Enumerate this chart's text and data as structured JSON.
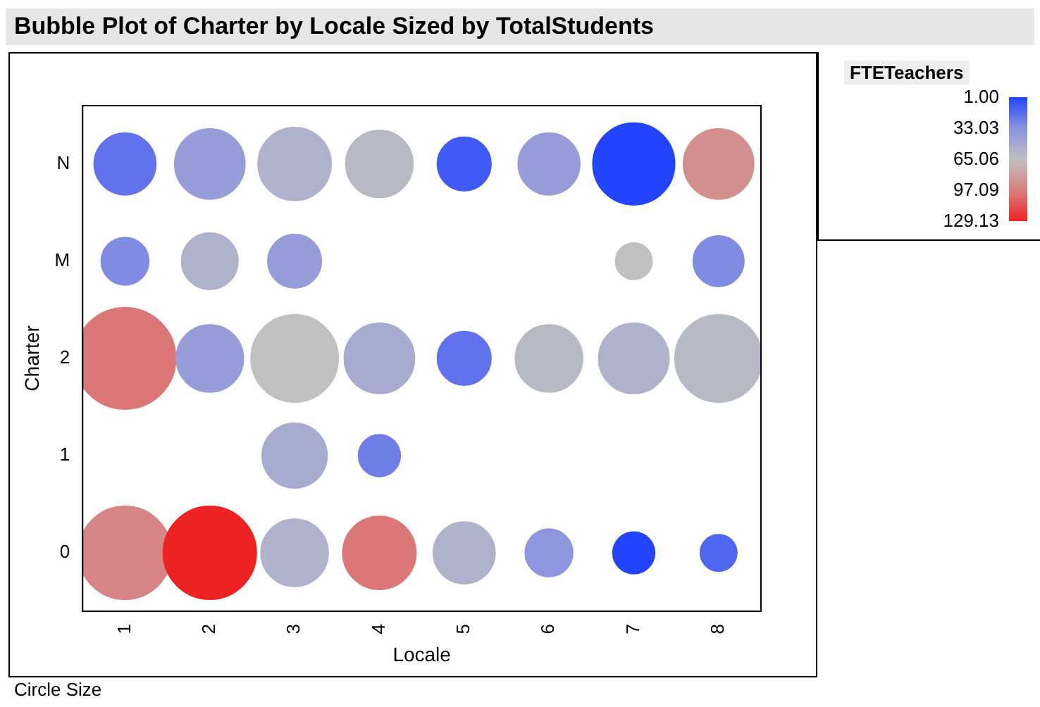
{
  "chart_data": {
    "type": "bubble",
    "title": "Bubble Plot of Charter by Locale Sized by TotalStudents",
    "xlabel": "Locale",
    "ylabel": "Charter",
    "clabel": "FTETeachers",
    "annotations": [
      "Circle Size"
    ],
    "xlim": [
      0.5,
      8.5
    ],
    "xticks": [
      1,
      2,
      3,
      4,
      5,
      6,
      7,
      8
    ],
    "ylim": [
      -0.6,
      4.6
    ],
    "yticks": [
      0,
      1,
      2,
      {
        "value": 3,
        "label": "M"
      },
      {
        "value": 4,
        "label": "N"
      }
    ],
    "clim": [
      1,
      129.13
    ],
    "cticks": [
      {
        "value": 1,
        "label": "1.00"
      },
      33.03,
      65.06,
      97.09,
      129.13
    ],
    "series": [
      {
        "x": [
          1,
          2,
          3,
          4,
          5,
          6,
          7,
          8,
          1,
          2,
          3,
          7,
          8,
          1,
          2,
          3,
          4,
          5,
          6,
          7,
          8,
          3,
          4,
          1,
          2,
          3,
          4,
          5,
          6,
          7,
          8
        ],
        "values": [
          4,
          4,
          4,
          4,
          4,
          4,
          4,
          4,
          3,
          3,
          3,
          3,
          3,
          2,
          2,
          2,
          2,
          2,
          2,
          2,
          2,
          1,
          1,
          0,
          0,
          0,
          0,
          0,
          0,
          0,
          0
        ],
        "sizes": [
          0.37,
          0.48,
          0.52,
          0.44,
          0.28,
          0.37,
          0.65,
          0.48,
          0.22,
          0.31,
          0.28,
          0.13,
          0.25,
          1,
          0.44,
          0.74,
          0.48,
          0.28,
          0.44,
          0.48,
          0.74,
          0.41,
          0.17,
          0.84,
          0.84,
          0.44,
          0.52,
          0.37,
          0.22,
          0.17,
          0.13
        ],
        "cvalues": [
          20,
          40,
          55,
          60,
          10,
          40,
          1,
          90,
          30,
          55,
          40,
          65,
          30,
          100,
          40,
          65,
          50,
          20,
          60,
          55,
          60,
          50,
          25,
          95,
          129,
          55,
          100,
          55,
          35,
          1,
          15
        ]
      }
    ]
  }
}
